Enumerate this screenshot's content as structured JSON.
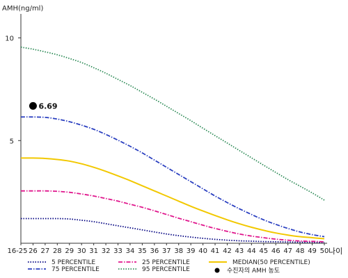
{
  "chart_data": {
    "type": "line",
    "title": "",
    "ylabel": "AMH(ng/ml)",
    "xlabel": "나이",
    "ylim": [
      0,
      11
    ],
    "yticks": [
      5,
      10
    ],
    "x": [
      "16-25",
      "26",
      "27",
      "28",
      "29",
      "30",
      "31",
      "32",
      "33",
      "34",
      "35",
      "36",
      "37",
      "38",
      "39",
      "40",
      "41",
      "42",
      "43",
      "44",
      "45",
      "46",
      "47",
      "48",
      "49",
      "50"
    ],
    "series": [
      {
        "name": "5 PERCENTILE",
        "color": "#000080",
        "dash": "dotted",
        "values": [
          1.2,
          1.2,
          1.2,
          1.2,
          1.18,
          1.12,
          1.05,
          0.95,
          0.85,
          0.75,
          0.65,
          0.55,
          0.45,
          0.37,
          0.3,
          0.24,
          0.19,
          0.15,
          0.12,
          0.1,
          0.08,
          0.07,
          0.06,
          0.05,
          0.05,
          0.04
        ]
      },
      {
        "name": "25 PERCENTILE",
        "color": "#e0158c",
        "dash": "dashdot",
        "values": [
          2.55,
          2.55,
          2.55,
          2.53,
          2.48,
          2.4,
          2.3,
          2.18,
          2.05,
          1.9,
          1.75,
          1.58,
          1.4,
          1.22,
          1.05,
          0.88,
          0.72,
          0.58,
          0.45,
          0.35,
          0.27,
          0.2,
          0.15,
          0.11,
          0.09,
          0.07
        ]
      },
      {
        "name": "MEDIAN(50 PERCENTILE)",
        "color": "#f2c800",
        "dash": "solid",
        "values": [
          4.15,
          4.15,
          4.13,
          4.08,
          4.0,
          3.87,
          3.7,
          3.5,
          3.28,
          3.05,
          2.8,
          2.55,
          2.3,
          2.05,
          1.8,
          1.57,
          1.35,
          1.14,
          0.95,
          0.78,
          0.63,
          0.5,
          0.4,
          0.32,
          0.27,
          0.22
        ]
      },
      {
        "name": "75 PERCENTILE",
        "color": "#2a3fc0",
        "dash": "dashdot",
        "values": [
          6.15,
          6.15,
          6.13,
          6.05,
          5.92,
          5.75,
          5.55,
          5.3,
          5.02,
          4.72,
          4.4,
          4.05,
          3.7,
          3.35,
          3.0,
          2.65,
          2.3,
          1.98,
          1.68,
          1.4,
          1.14,
          0.92,
          0.72,
          0.55,
          0.42,
          0.32
        ]
      },
      {
        "name": "95 PERCENTILE",
        "color": "#2e8b57",
        "dash": "dotted",
        "values": [
          9.55,
          9.45,
          9.32,
          9.18,
          9.0,
          8.8,
          8.55,
          8.28,
          7.98,
          7.68,
          7.35,
          7.02,
          6.67,
          6.32,
          5.97,
          5.6,
          5.24,
          4.88,
          4.52,
          4.16,
          3.8,
          3.45,
          3.1,
          2.78,
          2.45,
          2.1
        ]
      }
    ],
    "patient_point": {
      "name": "수진자의 AMH 농도",
      "x": "26",
      "y": 6.69,
      "label": "6.69"
    },
    "legend": [
      {
        "series": 0
      },
      {
        "series": 1
      },
      {
        "series": 2
      },
      {
        "series": 3
      },
      {
        "series": 4
      },
      {
        "marker": "dot",
        "label": "수진자의 AMH 농도"
      }
    ]
  }
}
